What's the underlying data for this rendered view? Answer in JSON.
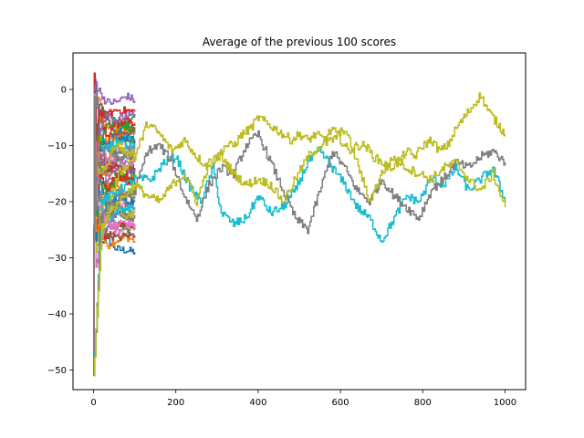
{
  "chart_data": {
    "type": "line",
    "title": "Average of the previous 100 scores",
    "xlabel": "",
    "ylabel": "",
    "xlim": [
      -50,
      1050
    ],
    "ylim": [
      -53.5,
      6.5
    ],
    "xticks": [
      0,
      200,
      400,
      600,
      800,
      1000
    ],
    "yticks": [
      -50,
      -40,
      -30,
      -20,
      -10,
      0
    ],
    "grid": false,
    "legend": "none",
    "short_runs": {
      "episodes": 100,
      "count": 48,
      "start": -51,
      "colors": [
        "#1f77b4",
        "#ff7f0e",
        "#2ca02c",
        "#d62728",
        "#9467bd",
        "#8c564b",
        "#e377c2",
        "#7f7f7f",
        "#bcbd22",
        "#17becf"
      ],
      "final_values": [
        -29,
        -27,
        -25,
        -24,
        -23,
        -22,
        -21,
        -20,
        -19,
        -18,
        -17,
        -16,
        -15,
        -14,
        -13,
        -12,
        -11,
        -10,
        -9,
        -8,
        -7,
        -6,
        -5,
        -4,
        -2,
        -26,
        -25,
        -23,
        -22,
        -21,
        -20,
        -18,
        -17,
        -16,
        -15,
        -14,
        -13,
        -12,
        -11,
        -10,
        -9,
        -8,
        -7,
        -6,
        -5,
        -7,
        -24,
        -19
      ]
    },
    "series": [
      {
        "color": "#bcbd22",
        "x": [
          0,
          20,
          60,
          100,
          130,
          160,
          190,
          220,
          250,
          280,
          300,
          320,
          340,
          360,
          380,
          400,
          420,
          440,
          460,
          480,
          500,
          520,
          540,
          560,
          580,
          600,
          620,
          640,
          660,
          680,
          700,
          720,
          740,
          760,
          780,
          800,
          820,
          840,
          860,
          880,
          900,
          920,
          940,
          960,
          980,
          1000
        ],
        "values": [
          -51,
          -25,
          -15,
          -12,
          -6,
          -8,
          -11,
          -9,
          -12,
          -14,
          -12,
          -10,
          -10,
          -8,
          -7,
          -5,
          -6,
          -7,
          -8,
          -9,
          -8,
          -9,
          -8,
          -9,
          -7,
          -9,
          -11,
          -10,
          -10,
          -12,
          -13,
          -14,
          -13,
          -11,
          -12,
          -10,
          -9,
          -11,
          -10,
          -7,
          -5,
          -3,
          -1,
          -4,
          -6,
          -8
        ]
      },
      {
        "color": "#17becf",
        "x": [
          0,
          20,
          60,
          100,
          140,
          170,
          200,
          230,
          260,
          290,
          310,
          340,
          370,
          400,
          430,
          460,
          490,
          520,
          550,
          580,
          610,
          640,
          670,
          700,
          730,
          760,
          790,
          820,
          850,
          880,
          910,
          940,
          970,
          1000
        ],
        "values": [
          -51,
          -20,
          -18,
          -16,
          -16,
          -13,
          -12,
          -17,
          -20,
          -14,
          -22,
          -24,
          -23,
          -19,
          -22,
          -21,
          -18,
          -13,
          -11,
          -14,
          -17,
          -21,
          -23,
          -27,
          -23,
          -19,
          -20,
          -16,
          -17,
          -14,
          -18,
          -16,
          -14,
          -20
        ]
      },
      {
        "color": "#7f7f7f",
        "x": [
          0,
          20,
          60,
          100,
          130,
          160,
          190,
          220,
          250,
          280,
          310,
          340,
          370,
          400,
          430,
          460,
          490,
          520,
          550,
          580,
          610,
          640,
          670,
          700,
          730,
          760,
          790,
          820,
          850,
          880,
          910,
          940,
          970,
          1000
        ],
        "values": [
          -51,
          -22,
          -20,
          -18,
          -11,
          -10,
          -13,
          -19,
          -23,
          -17,
          -14,
          -15,
          -10,
          -8,
          -13,
          -18,
          -23,
          -25,
          -18,
          -11,
          -14,
          -18,
          -20,
          -16,
          -19,
          -21,
          -23,
          -18,
          -16,
          -13,
          -14,
          -12,
          -11,
          -13
        ]
      },
      {
        "color": "#bcbd22",
        "x": [
          0,
          20,
          60,
          100,
          130,
          160,
          190,
          220,
          250,
          280,
          310,
          340,
          370,
          400,
          430,
          460,
          490,
          520,
          550,
          580,
          610,
          640,
          670,
          700,
          730,
          760,
          790,
          820,
          850,
          880,
          910,
          940,
          970,
          1000
        ],
        "values": [
          -51,
          -24,
          -20,
          -17,
          -19,
          -20,
          -17,
          -15,
          -20,
          -13,
          -12,
          -15,
          -17,
          -16,
          -17,
          -20,
          -16,
          -12,
          -10,
          -9,
          -7,
          -13,
          -20,
          -15,
          -12,
          -14,
          -15,
          -16,
          -14,
          -13,
          -16,
          -18,
          -15,
          -21
        ]
      }
    ]
  }
}
